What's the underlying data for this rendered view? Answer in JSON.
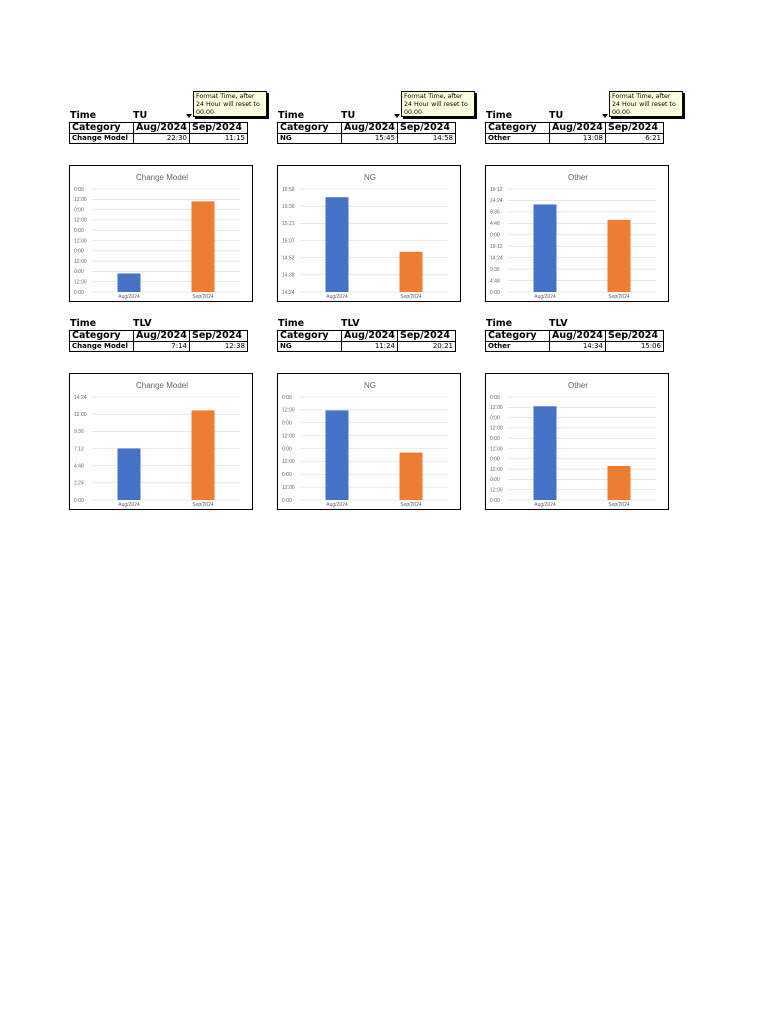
{
  "labels": {
    "time": "Time",
    "category": "Category"
  },
  "note_text": "Format Time, after 24 Hour will reset to 00.00",
  "colors": {
    "series1": "#4472c4",
    "series2": "#ed7d31",
    "grid": "#d9d9d9"
  },
  "sections": [
    {
      "location": "TU",
      "blocks": [
        {
          "category": "Change Model",
          "months": [
            "Aug/2024",
            "Sep/2024"
          ],
          "values": [
            "22:30",
            "11:15"
          ],
          "chart_data": {
            "type": "bar",
            "title": "Change Model",
            "categories": [
              "Aug/2024",
              "Sep/2024"
            ],
            "values": [
              0.18,
              0.88
            ],
            "yticks": [
              "0:00",
              "12:00",
              "0:00",
              "12:00",
              "0:00",
              "12:00",
              "0:00",
              "12:00",
              "0:00",
              "12:00",
              "0:00"
            ]
          }
        },
        {
          "category": "NG",
          "months": [
            "Aug/2024",
            "Sep/2024"
          ],
          "values": [
            "15:45",
            "14:58"
          ],
          "chart_data": {
            "type": "bar",
            "title": "NG",
            "categories": [
              "Aug/2024",
              "Sep/2024"
            ],
            "values": [
              0.92,
              0.39
            ],
            "yticks": [
              "15:50",
              "15:36",
              "15:21",
              "15:07",
              "14:52",
              "14:38",
              "14:24"
            ]
          }
        },
        {
          "category": "Other",
          "months": [
            "Aug/2024",
            "Sep/2024"
          ],
          "values": [
            "13:08",
            "6:21"
          ],
          "chart_data": {
            "type": "bar",
            "title": "Other",
            "categories": [
              "Aug/2024",
              "Sep/2024"
            ],
            "values": [
              0.85,
              0.7
            ],
            "yticks": [
              "19:12",
              "14:24",
              "9:36",
              "4:48",
              "0:00",
              "19:12",
              "14:24",
              "9:36",
              "4:48",
              "0:00"
            ]
          }
        }
      ]
    },
    {
      "location": "TLV",
      "blocks": [
        {
          "category": "Change Model",
          "months": [
            "Aug/2024",
            "Sep/2024"
          ],
          "values": [
            "7:14",
            "12:38"
          ],
          "chart_data": {
            "type": "bar",
            "title": "Change Model",
            "categories": [
              "Aug/2024",
              "Sep/2024"
            ],
            "values": [
              0.5,
              0.87
            ],
            "yticks": [
              "14:24",
              "12:00",
              "9:36",
              "7:12",
              "4:48",
              "2:24",
              "0:00"
            ]
          }
        },
        {
          "category": "NG",
          "months": [
            "Aug/2024",
            "Sep/2024"
          ],
          "values": [
            "11:24",
            "20:21"
          ],
          "chart_data": {
            "type": "bar",
            "title": "NG",
            "categories": [
              "Aug/2024",
              "Sep/2024"
            ],
            "values": [
              0.87,
              0.46
            ],
            "yticks": [
              "0:00",
              "12:00",
              "0:00",
              "12:00",
              "0:00",
              "12:00",
              "0:00",
              "12:00",
              "0:00"
            ]
          }
        },
        {
          "category": "Other",
          "months": [
            "Aug/2024",
            "Sep/2024"
          ],
          "values": [
            "14:34",
            "15:06"
          ],
          "chart_data": {
            "type": "bar",
            "title": "Other",
            "categories": [
              "Aug/2024",
              "Sep/2024"
            ],
            "values": [
              0.91,
              0.33
            ],
            "yticks": [
              "0:00",
              "12:00",
              "0:00",
              "12:00",
              "0:00",
              "12:00",
              "0:00",
              "12:00",
              "0:00",
              "12:00",
              "0:00"
            ]
          }
        }
      ]
    }
  ]
}
